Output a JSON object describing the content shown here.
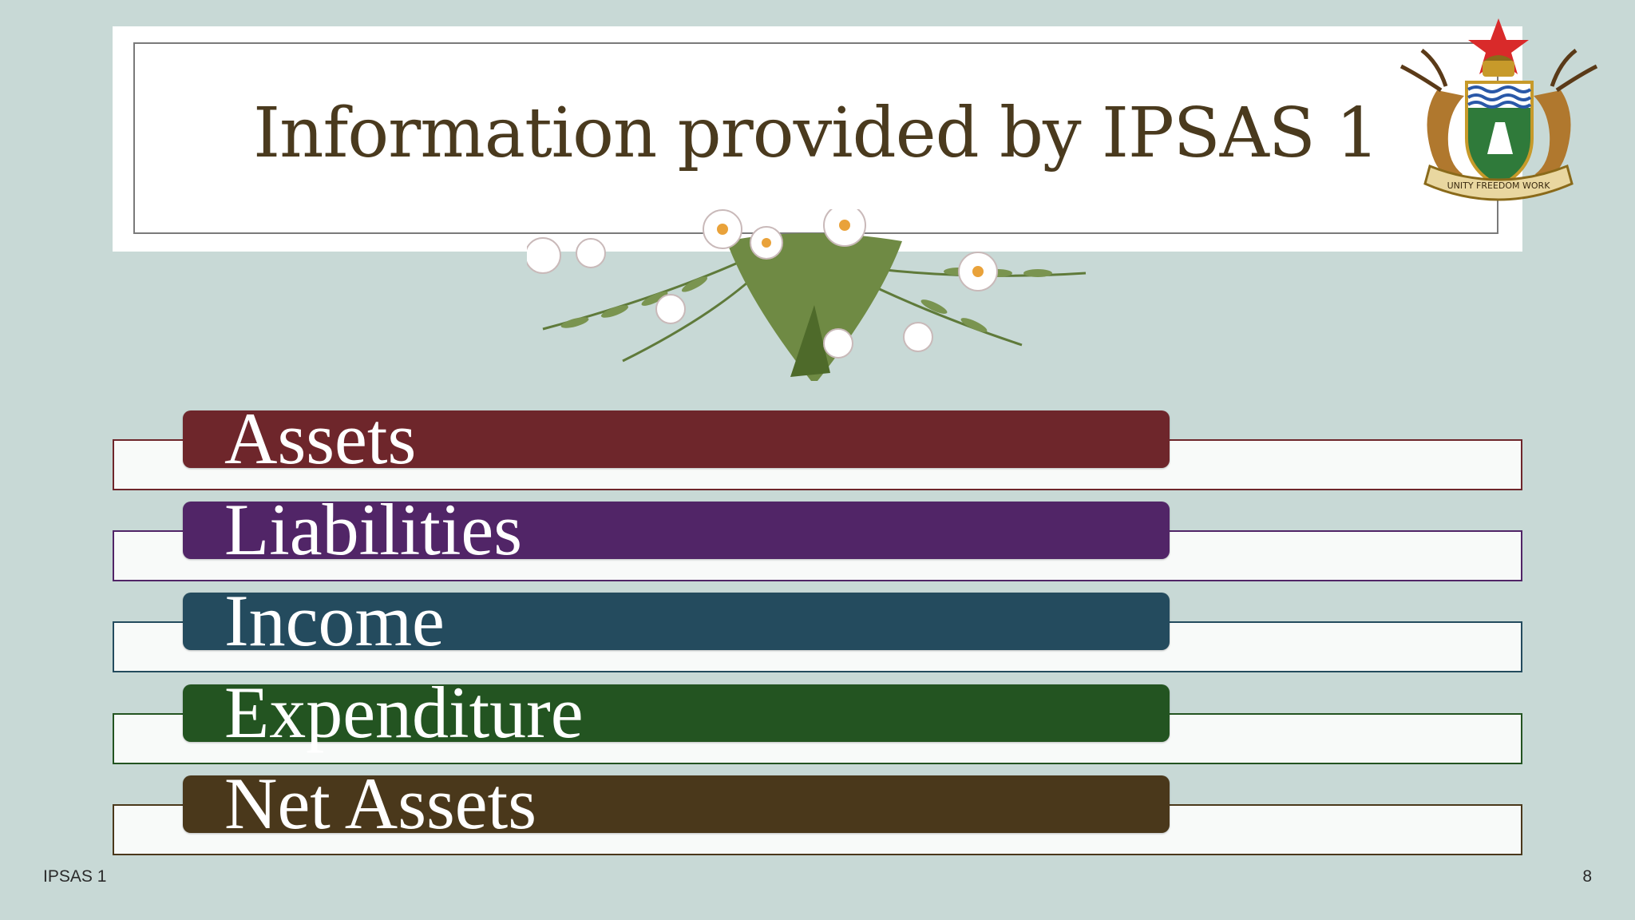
{
  "slide": {
    "title": "Information provided by IPSAS 1",
    "crest_icon": "zimbabwe-coat-of-arms-icon",
    "floral_icon": "fern-and-flowers-ornament-icon",
    "crest_motto": "UNITY FREEDOM WORK"
  },
  "items": [
    {
      "label": "Assets",
      "color": "#6e262b"
    },
    {
      "label": "Liabilities",
      "color": "#512567"
    },
    {
      "label": "Income",
      "color": "#244b5e"
    },
    {
      "label": "Expenditure",
      "color": "#235421"
    },
    {
      "label": "Net Assets",
      "color": "#4a381b"
    }
  ],
  "footer": {
    "left": "IPSAS 1",
    "page_number": "8"
  }
}
